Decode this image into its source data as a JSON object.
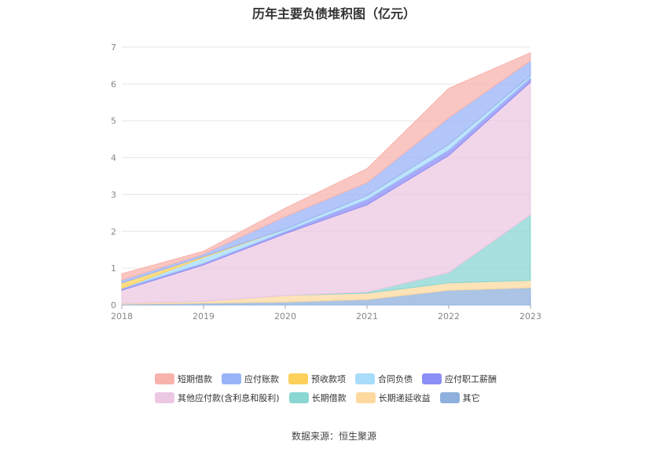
{
  "title": "历年主要负债堆积图（亿元）",
  "source": "数据来源：恒生聚源",
  "chart_data": {
    "type": "area",
    "stacked": true,
    "title": "历年主要负债堆积图（亿元）",
    "x": [
      "2018",
      "2019",
      "2020",
      "2021",
      "2022",
      "2023"
    ],
    "ylim": [
      0,
      7
    ],
    "yticks": [
      0,
      1,
      2,
      3,
      4,
      5,
      6,
      7
    ],
    "grid": true,
    "legend_position": "bottom",
    "series": [
      {
        "name": "其它",
        "color": "#8fb0dc",
        "values": [
          0.02,
          0.05,
          0.08,
          0.15,
          0.4,
          0.47
        ]
      },
      {
        "name": "长期递延收益",
        "color": "#fdd9a0",
        "values": [
          0.02,
          0.05,
          0.18,
          0.17,
          0.2,
          0.2
        ]
      },
      {
        "name": "长期借款",
        "color": "#8ad6d3",
        "values": [
          0,
          0,
          0,
          0.03,
          0.28,
          1.78
        ]
      },
      {
        "name": "其他应付款(含利息和股利)",
        "color": "#ecc7e2",
        "values": [
          0.36,
          0.99,
          1.68,
          2.37,
          3.18,
          3.6
        ]
      },
      {
        "name": "应付职工薪酬",
        "color": "#8b8ef5",
        "values": [
          0.05,
          0.05,
          0.06,
          0.15,
          0.15,
          0.12
        ]
      },
      {
        "name": "合同负债",
        "color": "#a7dcfb",
        "values": [
          0,
          0.15,
          0.06,
          0.1,
          0.15,
          0.06
        ]
      },
      {
        "name": "预收款项",
        "color": "#fdd05a",
        "values": [
          0.15,
          0.03,
          0,
          0,
          0,
          0
        ]
      },
      {
        "name": "应付账款",
        "color": "#99b3f8",
        "values": [
          0.08,
          0.06,
          0.34,
          0.35,
          0.72,
          0.4
        ]
      },
      {
        "name": "短期借款",
        "color": "#f8b3ac",
        "values": [
          0.17,
          0.08,
          0.23,
          0.38,
          0.8,
          0.22
        ]
      }
    ],
    "legend_order": [
      "短期借款",
      "应付账款",
      "预收款项",
      "合同负债",
      "应付职工薪酬",
      "其他应付款(含利息和股利)",
      "长期借款",
      "长期递延收益",
      "其它"
    ]
  }
}
